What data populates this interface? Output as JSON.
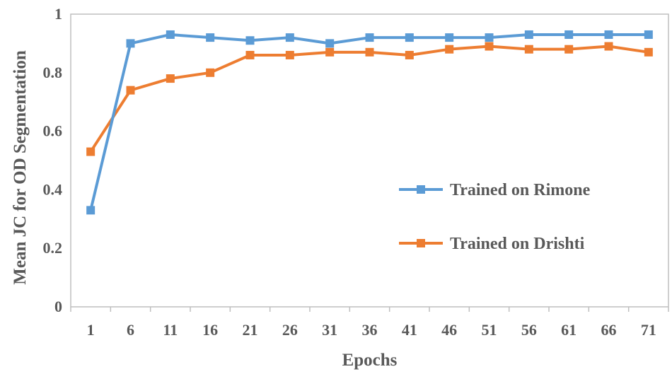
{
  "chart_data": {
    "type": "line",
    "xlabel": "Epochs",
    "ylabel": "Mean JC for OD Segmentation",
    "categories": [
      "1",
      "6",
      "11",
      "16",
      "21",
      "26",
      "31",
      "36",
      "41",
      "46",
      "51",
      "56",
      "61",
      "66",
      "71"
    ],
    "ylim": [
      0,
      1
    ],
    "yticks": [
      "0",
      "0.2",
      "0.4",
      "0.6",
      "0.8",
      "1"
    ],
    "grid": false,
    "legend_position": "right",
    "series": [
      {
        "name": "Trained on Rimone",
        "color": "#5B9BD5",
        "values": [
          0.33,
          0.9,
          0.93,
          0.92,
          0.91,
          0.92,
          0.9,
          0.92,
          0.92,
          0.92,
          0.92,
          0.93,
          0.93,
          0.93,
          0.93
        ]
      },
      {
        "name": "Trained on Drishti",
        "color": "#ED7D31",
        "values": [
          0.53,
          0.74,
          0.78,
          0.8,
          0.86,
          0.86,
          0.87,
          0.87,
          0.86,
          0.88,
          0.89,
          0.88,
          0.88,
          0.89,
          0.87
        ]
      }
    ]
  }
}
